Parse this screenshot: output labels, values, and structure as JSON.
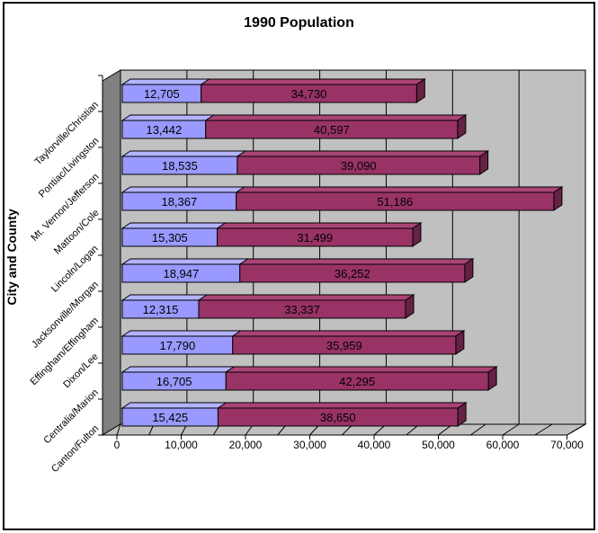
{
  "chart_data": {
    "type": "bar",
    "orientation": "horizontal",
    "stacked": true,
    "title": "1990 Population",
    "xlabel": "",
    "ylabel": "City and County",
    "categories": [
      "Taylorville/Christian",
      "Pontiac/Livingston",
      "Mt. Vernon/Jefferson",
      "Mattoon/Cole",
      "Lincoln/Logan",
      "Jacksonville/Morgan",
      "Effingham/Effingham",
      "Dixon/Lee",
      "Centralia/Marion",
      "Canton/Fulton"
    ],
    "series": [
      {
        "name": "series_blue",
        "color": "#9999FF",
        "values": [
          12705,
          13442,
          18535,
          18367,
          15305,
          18947,
          12315,
          17790,
          16705,
          15425
        ]
      },
      {
        "name": "series_maroon",
        "color": "#993366",
        "values": [
          34730,
          40597,
          39090,
          51186,
          31499,
          36252,
          33337,
          35959,
          42295,
          38650
        ]
      }
    ],
    "data_labels_shown": true,
    "xlim": [
      0,
      70000
    ],
    "x_tick_step": 10000,
    "x_minor_tick_step": 5000,
    "x_tick_labels": [
      "0",
      "10,000",
      "20,000",
      "30,000",
      "40,000",
      "50,000",
      "60,000",
      "70,000"
    ],
    "grid": true,
    "legend": "none",
    "style_3d": true
  },
  "colors": {
    "blue_front": "#9999FF",
    "blue_top": "#B3B3FF",
    "blue_end": "#666699",
    "maroon_front": "#993366",
    "maroon_top": "#AA4477",
    "maroon_end": "#662244",
    "back_wall": "#C0C0C0",
    "side_wall": "#808080",
    "floor": "#C0C0C0",
    "gridline": "#000000",
    "text": "#000000"
  }
}
